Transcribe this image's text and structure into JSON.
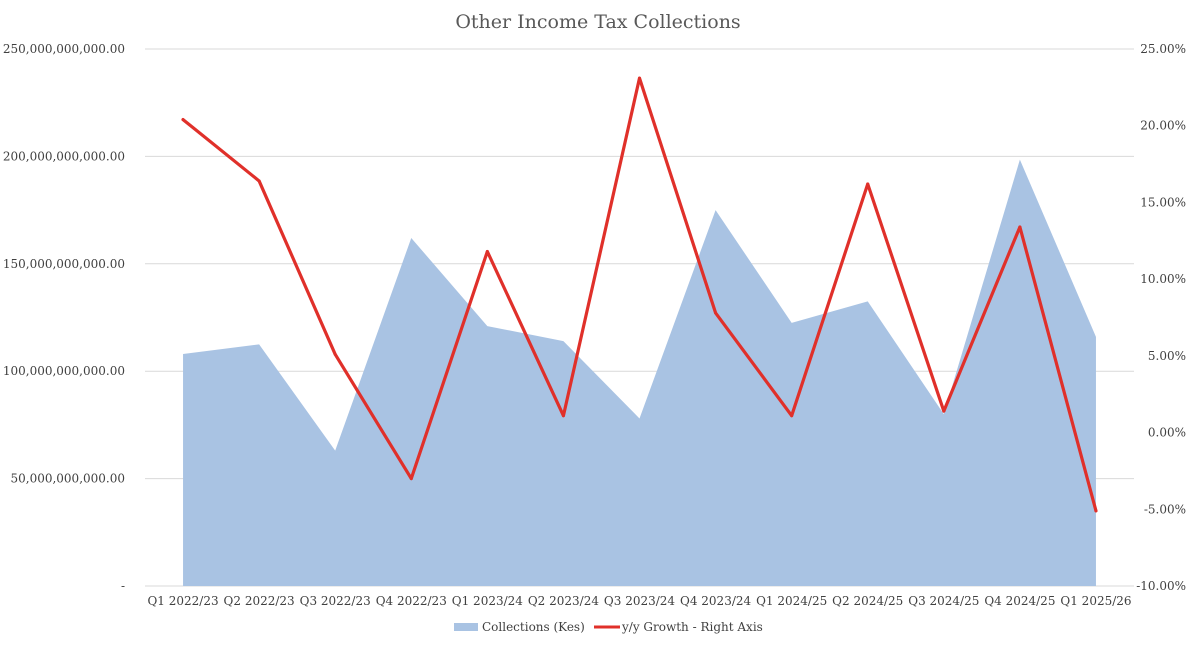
{
  "chart_data": {
    "type": "area",
    "title": "Other Income Tax Collections",
    "categories": [
      "Q1 2022/23",
      "Q2 2022/23",
      "Q3 2022/23",
      "Q4 2022/23",
      "Q1 2023/24",
      "Q2 2023/24",
      "Q3 2023/24",
      "Q4 2023/24",
      "Q1 2024/25",
      "Q2 2024/25",
      "Q3 2024/25",
      "Q4 2024/25",
      "Q1 2025/26"
    ],
    "series": [
      {
        "name": "Collections (Kes)",
        "type": "area",
        "axis": "left",
        "color": "#a9c3e3",
        "values": [
          108000000000,
          112500000000,
          63000000000,
          162000000000,
          121000000000,
          114000000000,
          78000000000,
          175000000000,
          122500000000,
          132500000000,
          80000000000,
          198500000000,
          116000000000
        ]
      },
      {
        "name": "y/y Growth - Right Axis",
        "type": "line",
        "axis": "right",
        "color": "#e0302a",
        "values": [
          0.204,
          0.164,
          0.051,
          -0.03,
          0.118,
          0.011,
          0.231,
          0.078,
          0.011,
          0.162,
          0.014,
          0.134,
          -0.051
        ]
      }
    ],
    "y_left": {
      "ylim": [
        0,
        250000000000
      ],
      "ticks": [
        0,
        50000000000,
        100000000000,
        150000000000,
        200000000000,
        250000000000
      ],
      "tick_labels": [
        "-",
        "50,000,000,000.00",
        "100,000,000,000.00",
        "150,000,000,000.00",
        "200,000,000,000.00",
        "250,000,000,000.00"
      ]
    },
    "y_right": {
      "ylim": [
        -0.1,
        0.25
      ],
      "ticks": [
        -0.1,
        -0.05,
        0.0,
        0.05,
        0.1,
        0.15,
        0.2,
        0.25
      ],
      "tick_labels": [
        "-10.00%",
        "-5.00%",
        "0.00%",
        "5.00%",
        "10.00%",
        "15.00%",
        "20.00%",
        "25.00%"
      ]
    },
    "grid": true,
    "legend_position": "bottom"
  }
}
